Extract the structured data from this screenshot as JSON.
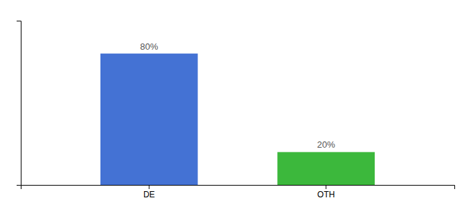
{
  "chart_data": {
    "type": "bar",
    "categories": [
      "DE",
      "OTH"
    ],
    "values": [
      80,
      20
    ],
    "value_labels": [
      "80%",
      "20%"
    ],
    "colors": [
      "#4472d4",
      "#3cb83c"
    ],
    "ylim": [
      0,
      100
    ],
    "data_labels": true,
    "tick_labels": "x"
  }
}
